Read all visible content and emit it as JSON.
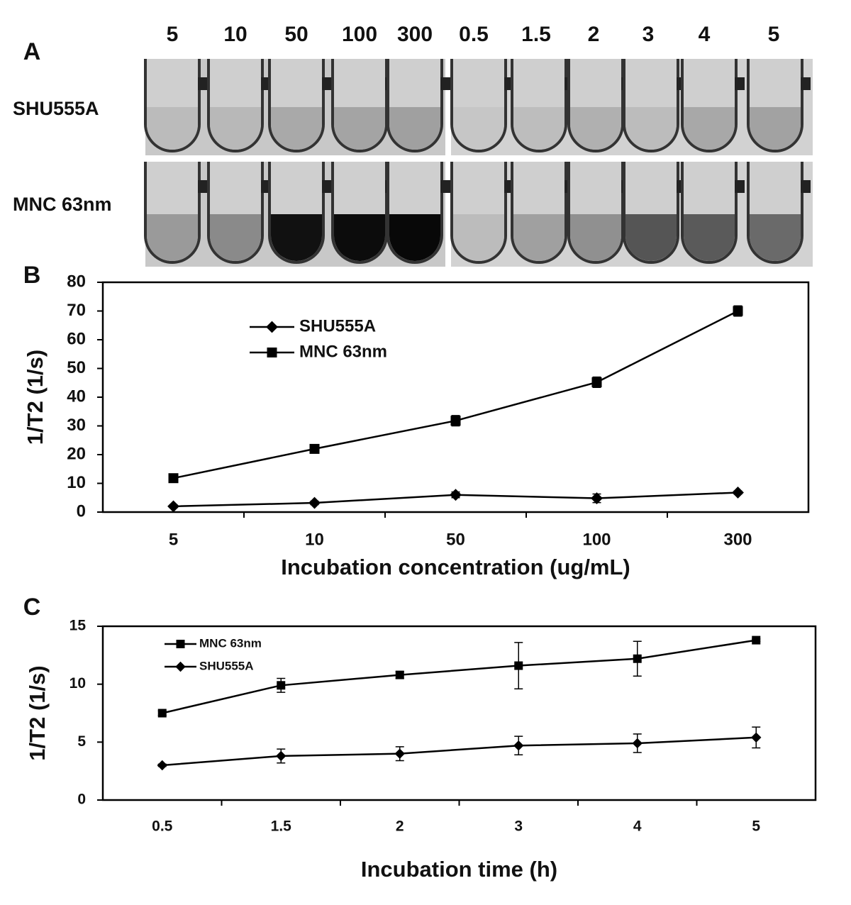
{
  "panel_labels": [
    "A",
    "B",
    "C"
  ],
  "image_panel": {
    "column_labels": [
      "5",
      "10",
      "50",
      "100",
      "300",
      "0.5",
      "1.5",
      "2",
      "3",
      "4",
      "5"
    ],
    "row_labels": [
      "SHU555A",
      "MNC 63nm"
    ]
  },
  "chart_data": [
    {
      "type": "line",
      "xlabel": "Incubation concentration (ug/mL)",
      "ylabel": "1/T2 (1/s)",
      "categories": [
        "5",
        "10",
        "50",
        "100",
        "300"
      ],
      "ylim": [
        0,
        80
      ],
      "yticks": [
        0,
        10,
        20,
        30,
        40,
        50,
        60,
        70,
        80
      ],
      "series": [
        {
          "name": "SHU555A",
          "color": "#000000",
          "marker": "diamond",
          "values": [
            2,
            3.2,
            6,
            4.8,
            6.8
          ],
          "errors": [
            0.5,
            0.6,
            1,
            1.5,
            0.5
          ]
        },
        {
          "name": "MNC 63nm",
          "color": "#000000",
          "marker": "square",
          "values": [
            11.8,
            22,
            31.8,
            45.2,
            70
          ],
          "errors": [
            0.8,
            0.7,
            1.8,
            1.8,
            1.8
          ]
        }
      ]
    },
    {
      "type": "line",
      "xlabel": "Incubation time (h)",
      "ylabel": "1/T2 (1/s)",
      "categories": [
        "0.5",
        "1.5",
        "2",
        "3",
        "4",
        "5"
      ],
      "ylim": [
        0,
        15
      ],
      "yticks": [
        0,
        5,
        10,
        15
      ],
      "series": [
        {
          "name": "MNC 63nm",
          "color": "#000000",
          "marker": "square",
          "values": [
            7.5,
            9.9,
            10.8,
            11.6,
            12.2,
            13.8
          ],
          "errors": [
            0.2,
            0.6,
            0.3,
            2,
            1.5,
            0.1
          ]
        },
        {
          "name": "SHU555A",
          "color": "#000000",
          "marker": "diamond",
          "values": [
            3,
            3.8,
            4,
            4.7,
            4.9,
            5.4
          ],
          "errors": [
            0.1,
            0.6,
            0.6,
            0.8,
            0.8,
            0.9
          ]
        }
      ]
    }
  ]
}
